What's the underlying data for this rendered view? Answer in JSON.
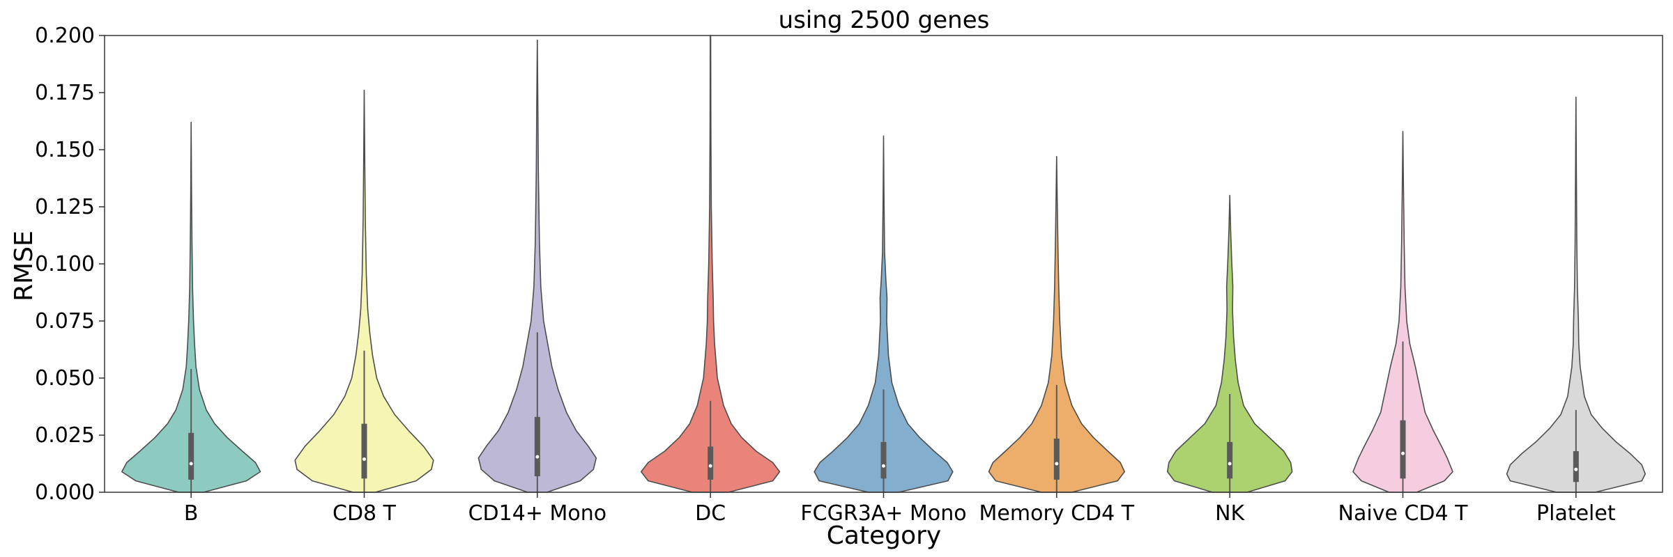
{
  "chart_data": {
    "type": "violin",
    "title": "using 2500 genes",
    "xlabel": "Category",
    "ylabel": "RMSE",
    "ylim": [
      0,
      0.2
    ],
    "yticks": [
      "0.000",
      "0.025",
      "0.050",
      "0.075",
      "0.100",
      "0.125",
      "0.150",
      "0.175",
      "0.200"
    ],
    "grid": false,
    "categories": [
      "B",
      "CD8 T",
      "CD14+ Mono",
      "DC",
      "FCGR3A+ Mono",
      "Memory CD4 T",
      "NK",
      "Naive CD4 T",
      "Platelet"
    ],
    "colors": [
      "#8dcbc0",
      "#f6f6b4",
      "#bcb8d6",
      "#ea847a",
      "#83aecd",
      "#ecae6a",
      "#acd16f",
      "#f6cde0",
      "#d9d9d9"
    ],
    "series": [
      {
        "max": 0.162,
        "q1": 0.0055,
        "median": 0.0125,
        "q3": 0.026,
        "whisker": 0.054,
        "profile": [
          [
            0,
            0.18
          ],
          [
            0.005,
            0.8
          ],
          [
            0.009,
            1.0
          ],
          [
            0.013,
            0.93
          ],
          [
            0.018,
            0.74
          ],
          [
            0.024,
            0.52
          ],
          [
            0.03,
            0.34
          ],
          [
            0.036,
            0.22
          ],
          [
            0.045,
            0.12
          ],
          [
            0.055,
            0.07
          ],
          [
            0.065,
            0.05
          ],
          [
            0.075,
            0.035
          ],
          [
            0.09,
            0.02
          ],
          [
            0.11,
            0.012
          ],
          [
            0.13,
            0.006
          ],
          [
            0.162,
            0
          ]
        ]
      },
      {
        "max": 0.176,
        "q1": 0.006,
        "median": 0.0145,
        "q3": 0.03,
        "whisker": 0.062,
        "profile": [
          [
            0,
            0.16
          ],
          [
            0.005,
            0.75
          ],
          [
            0.01,
            0.97
          ],
          [
            0.014,
            1.0
          ],
          [
            0.02,
            0.86
          ],
          [
            0.027,
            0.64
          ],
          [
            0.034,
            0.44
          ],
          [
            0.042,
            0.28
          ],
          [
            0.05,
            0.18
          ],
          [
            0.06,
            0.12
          ],
          [
            0.07,
            0.08
          ],
          [
            0.08,
            0.05
          ],
          [
            0.095,
            0.03
          ],
          [
            0.12,
            0.015
          ],
          [
            0.145,
            0.008
          ],
          [
            0.176,
            0
          ]
        ]
      },
      {
        "max": 0.198,
        "q1": 0.007,
        "median": 0.0155,
        "q3": 0.033,
        "whisker": 0.07,
        "profile": [
          [
            0,
            0.14
          ],
          [
            0.005,
            0.62
          ],
          [
            0.01,
            0.81
          ],
          [
            0.015,
            0.85
          ],
          [
            0.02,
            0.74
          ],
          [
            0.027,
            0.56
          ],
          [
            0.035,
            0.42
          ],
          [
            0.045,
            0.3
          ],
          [
            0.055,
            0.21
          ],
          [
            0.065,
            0.15
          ],
          [
            0.075,
            0.09
          ],
          [
            0.09,
            0.05
          ],
          [
            0.11,
            0.03
          ],
          [
            0.14,
            0.015
          ],
          [
            0.17,
            0.008
          ],
          [
            0.198,
            0
          ]
        ]
      },
      {
        "max": 0.2,
        "q1": 0.0055,
        "median": 0.0115,
        "q3": 0.02,
        "whisker": 0.04,
        "profile": [
          [
            0,
            0.26
          ],
          [
            0.005,
            0.9
          ],
          [
            0.009,
            1.0
          ],
          [
            0.013,
            0.9
          ],
          [
            0.018,
            0.66
          ],
          [
            0.024,
            0.45
          ],
          [
            0.03,
            0.3
          ],
          [
            0.038,
            0.19
          ],
          [
            0.05,
            0.1
          ],
          [
            0.065,
            0.06
          ],
          [
            0.075,
            0.045
          ],
          [
            0.085,
            0.04
          ],
          [
            0.1,
            0.025
          ],
          [
            0.125,
            0.012
          ],
          [
            0.16,
            0.006
          ],
          [
            0.2,
            0.003
          ]
        ]
      },
      {
        "max": 0.156,
        "q1": 0.006,
        "median": 0.0115,
        "q3": 0.022,
        "whisker": 0.045,
        "profile": [
          [
            0,
            0.22
          ],
          [
            0.005,
            0.93
          ],
          [
            0.009,
            1.0
          ],
          [
            0.013,
            0.92
          ],
          [
            0.018,
            0.73
          ],
          [
            0.024,
            0.52
          ],
          [
            0.03,
            0.35
          ],
          [
            0.038,
            0.22
          ],
          [
            0.048,
            0.12
          ],
          [
            0.06,
            0.07
          ],
          [
            0.075,
            0.045
          ],
          [
            0.085,
            0.05
          ],
          [
            0.092,
            0.035
          ],
          [
            0.105,
            0.015
          ],
          [
            0.13,
            0.006
          ],
          [
            0.156,
            0
          ]
        ]
      },
      {
        "max": 0.147,
        "q1": 0.0055,
        "median": 0.0125,
        "q3": 0.0235,
        "whisker": 0.047,
        "profile": [
          [
            0,
            0.22
          ],
          [
            0.005,
            0.88
          ],
          [
            0.009,
            0.98
          ],
          [
            0.013,
            0.92
          ],
          [
            0.018,
            0.74
          ],
          [
            0.024,
            0.53
          ],
          [
            0.03,
            0.36
          ],
          [
            0.038,
            0.22
          ],
          [
            0.048,
            0.12
          ],
          [
            0.06,
            0.07
          ],
          [
            0.075,
            0.045
          ],
          [
            0.09,
            0.03
          ],
          [
            0.105,
            0.02
          ],
          [
            0.125,
            0.01
          ],
          [
            0.147,
            0
          ]
        ]
      },
      {
        "max": 0.13,
        "q1": 0.006,
        "median": 0.0125,
        "q3": 0.022,
        "whisker": 0.043,
        "profile": [
          [
            0,
            0.25
          ],
          [
            0.005,
            0.8
          ],
          [
            0.009,
            0.9
          ],
          [
            0.013,
            0.88
          ],
          [
            0.018,
            0.78
          ],
          [
            0.024,
            0.57
          ],
          [
            0.03,
            0.36
          ],
          [
            0.038,
            0.2
          ],
          [
            0.048,
            0.12
          ],
          [
            0.058,
            0.08
          ],
          [
            0.068,
            0.055
          ],
          [
            0.08,
            0.04
          ],
          [
            0.09,
            0.045
          ],
          [
            0.1,
            0.03
          ],
          [
            0.115,
            0.012
          ],
          [
            0.13,
            0
          ]
        ]
      },
      {
        "max": 0.158,
        "q1": 0.006,
        "median": 0.017,
        "q3": 0.0315,
        "whisker": 0.066,
        "profile": [
          [
            0,
            0.2
          ],
          [
            0.005,
            0.6
          ],
          [
            0.009,
            0.72
          ],
          [
            0.015,
            0.64
          ],
          [
            0.02,
            0.56
          ],
          [
            0.027,
            0.44
          ],
          [
            0.035,
            0.32
          ],
          [
            0.045,
            0.25
          ],
          [
            0.055,
            0.18
          ],
          [
            0.065,
            0.1
          ],
          [
            0.075,
            0.055
          ],
          [
            0.09,
            0.03
          ],
          [
            0.11,
            0.018
          ],
          [
            0.135,
            0.008
          ],
          [
            0.158,
            0
          ]
        ]
      },
      {
        "max": 0.173,
        "q1": 0.0045,
        "median": 0.01,
        "q3": 0.018,
        "whisker": 0.036,
        "profile": [
          [
            0,
            0.28
          ],
          [
            0.005,
            0.95
          ],
          [
            0.008,
            1.0
          ],
          [
            0.012,
            0.95
          ],
          [
            0.017,
            0.78
          ],
          [
            0.022,
            0.58
          ],
          [
            0.028,
            0.38
          ],
          [
            0.034,
            0.22
          ],
          [
            0.042,
            0.12
          ],
          [
            0.055,
            0.06
          ],
          [
            0.065,
            0.04
          ],
          [
            0.075,
            0.035
          ],
          [
            0.09,
            0.02
          ],
          [
            0.11,
            0.012
          ],
          [
            0.14,
            0.006
          ],
          [
            0.173,
            0
          ]
        ]
      }
    ]
  }
}
